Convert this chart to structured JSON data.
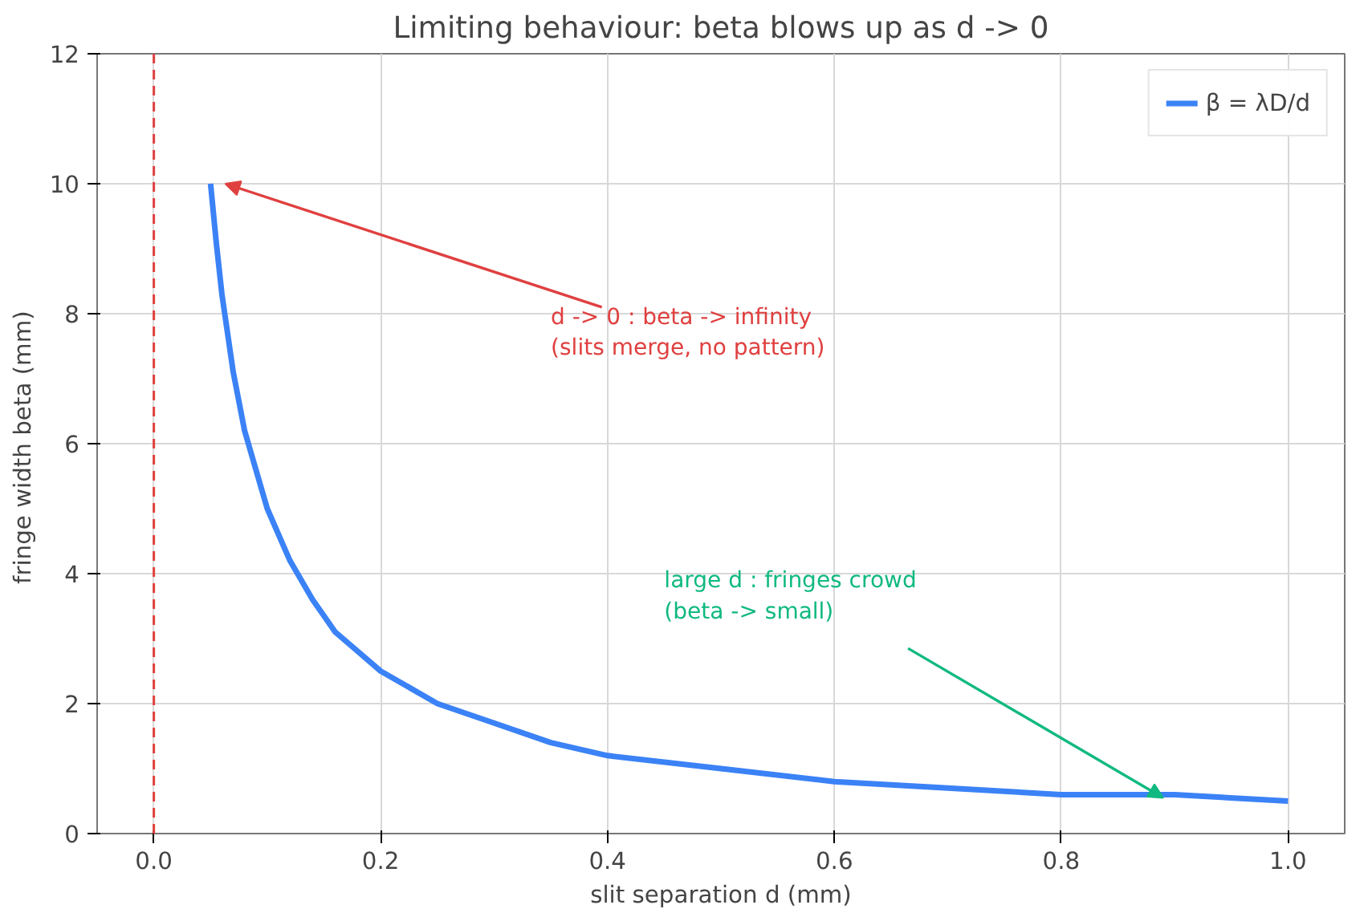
{
  "chart_data": {
    "type": "line",
    "title": "Limiting behaviour: beta blows up as d -> 0",
    "xlabel": "slit separation d (mm)",
    "ylabel": "fringe width  beta (mm)",
    "x": [
      0.05,
      0.055,
      0.06,
      0.07,
      0.08,
      0.09,
      0.1,
      0.12,
      0.14,
      0.16,
      0.18,
      0.2,
      0.25,
      0.3,
      0.35,
      0.4,
      0.5,
      0.6,
      0.7,
      0.8,
      0.9,
      1.0
    ],
    "series": [
      {
        "name": "β = λD/d",
        "color": "#3b82f6",
        "values": [
          10,
          9.1,
          8.3,
          7.1,
          6.2,
          5.6,
          5.0,
          4.2,
          3.6,
          3.1,
          2.8,
          2.5,
          2.0,
          1.7,
          1.4,
          1.2,
          1.0,
          0.8,
          0.7,
          0.6,
          0.6,
          0.5
        ]
      }
    ],
    "xlim": [
      -0.05,
      1.05
    ],
    "ylim": [
      0,
      12
    ],
    "xticks": [
      {
        "value": 0,
        "label": "0.0"
      },
      {
        "value": 0.2,
        "label": "0.2"
      },
      {
        "value": 0.4,
        "label": "0.4"
      },
      {
        "value": 0.6,
        "label": "0.6"
      },
      {
        "value": 0.8,
        "label": "0.8"
      },
      {
        "value": 1,
        "label": "1.0"
      }
    ],
    "yticks": [
      0,
      2,
      4,
      6,
      8,
      10,
      12
    ],
    "ref_lines": [
      {
        "axis": "x",
        "value": 0,
        "color": "#e04040",
        "line_style": "dashed"
      }
    ],
    "annotations": [
      "d -> 0 : beta -> infinity\n(slits merge, no pattern)",
      {
        "text": "large d : fringes crowd\n(beta -> small)",
        "x": 0.89,
        "y": 0.55
      }
    ],
    "grid": true,
    "legend": "top right",
    "line_style": "solid",
    "marker": "none"
  }
}
